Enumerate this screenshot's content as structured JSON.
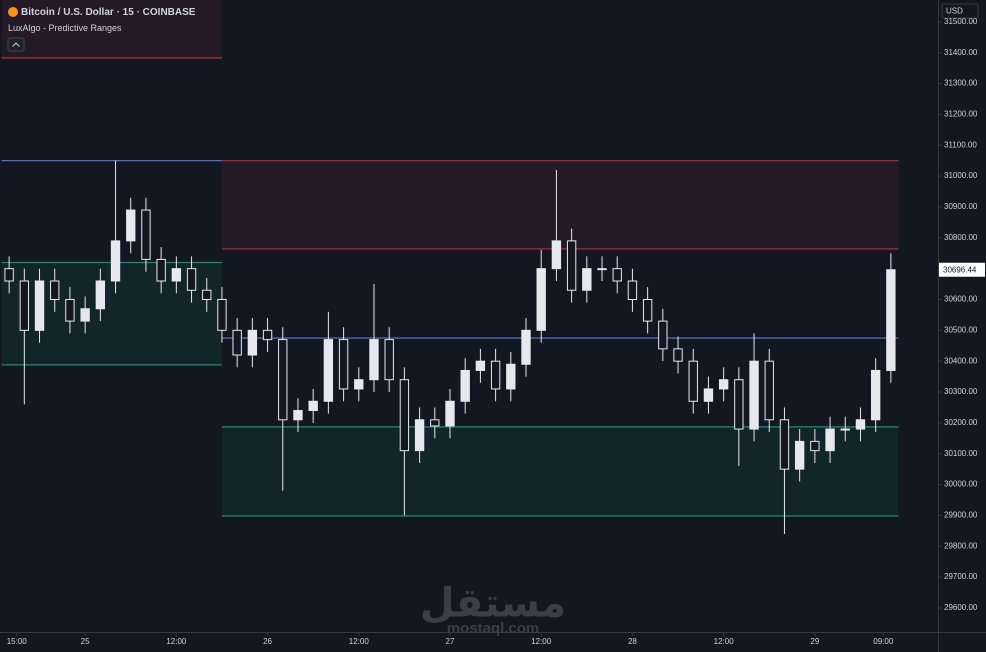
{
  "chart_data": {
    "type": "candlestick",
    "title": "Bitcoin / U.S. Dollar · 15 · COINBASE",
    "indicator": "LuxAlgo - Predictive Ranges",
    "currency": "USD",
    "watermark": "مستقل",
    "watermark_url": "mostaql.com",
    "x": [
      14,
      16,
      18,
      20,
      22,
      24,
      26,
      28,
      30,
      32,
      34,
      36,
      38,
      40,
      42,
      44,
      46,
      48,
      50,
      52,
      54,
      56,
      58,
      60,
      62,
      64,
      66,
      68,
      70,
      72,
      74,
      76,
      78,
      80,
      82,
      84,
      86,
      88,
      90,
      92,
      94,
      96,
      98,
      100,
      102,
      104,
      106,
      108,
      110,
      112,
      114,
      116,
      118,
      120,
      122,
      124,
      126,
      128,
      130
    ],
    "open": [
      30700,
      30660,
      30500,
      30660,
      30600,
      30530,
      30570,
      30660,
      30790,
      30890,
      30730,
      30660,
      30700,
      30630,
      30600,
      30500,
      30420,
      30500,
      30470,
      30210,
      30240,
      30270,
      30470,
      30310,
      30340,
      30470,
      30340,
      30110,
      30210,
      30190,
      30270,
      30370,
      30400,
      30310,
      30390,
      30500,
      30700,
      30790,
      30630,
      30700,
      30700,
      30660,
      30600,
      30530,
      30440,
      30400,
      30270,
      30310,
      30340,
      30180,
      30400,
      30210,
      30050,
      30140,
      30110,
      30180,
      30180,
      30210,
      30370
    ],
    "high": [
      30740,
      30700,
      30700,
      30700,
      30640,
      30610,
      30700,
      31050,
      30930,
      30930,
      30770,
      30740,
      30740,
      30670,
      30640,
      30540,
      30540,
      30540,
      30510,
      30280,
      30310,
      30560,
      30510,
      30380,
      30650,
      30510,
      30380,
      30250,
      30250,
      30310,
      30410,
      30440,
      30440,
      30430,
      30540,
      30760,
      31020,
      30830,
      30740,
      30740,
      30740,
      30700,
      30640,
      30570,
      30480,
      30440,
      30350,
      30380,
      30380,
      30490,
      30440,
      30250,
      30180,
      30180,
      30220,
      30220,
      30250,
      30410,
      30750
    ],
    "low": [
      30620,
      30260,
      30460,
      30560,
      30490,
      30490,
      30530,
      30620,
      30750,
      30690,
      30620,
      30620,
      30590,
      30560,
      30460,
      30380,
      30380,
      30430,
      29980,
      30170,
      30200,
      30230,
      30270,
      30270,
      30300,
      30300,
      29900,
      30070,
      30150,
      30150,
      30230,
      30330,
      30270,
      30270,
      30350,
      30460,
      30660,
      30590,
      30590,
      30660,
      30620,
      30560,
      30490,
      30400,
      30360,
      30230,
      30230,
      30270,
      30060,
      30140,
      30170,
      29840,
      30010,
      30070,
      30070,
      30140,
      30140,
      30170,
      30330
    ],
    "close": [
      30660,
      30500,
      30660,
      30600,
      30530,
      30570,
      30660,
      30790,
      30890,
      30730,
      30660,
      30700,
      30630,
      30600,
      30500,
      30420,
      30500,
      30470,
      30210,
      30240,
      30270,
      30470,
      30310,
      30340,
      30470,
      30340,
      30110,
      30210,
      30190,
      30270,
      30370,
      30400,
      30310,
      30390,
      30500,
      30700,
      30790,
      30630,
      30700,
      30700,
      30660,
      30600,
      30530,
      30440,
      30400,
      30270,
      30310,
      30340,
      30180,
      30400,
      30210,
      30050,
      30140,
      30110,
      30180,
      30180,
      30210,
      30370,
      30696.44
    ],
    "up_color": "#e6e8ee",
    "down_color": "#131722",
    "ranges": [
      {
        "start": 13,
        "end": 42,
        "r1": 31383,
        "avg": 31050,
        "s1": 30720,
        "s2": 30388
      },
      {
        "start": 42,
        "end": 131,
        "r2": 31050,
        "r1": 30764,
        "avg": 30475,
        "s1": 30187,
        "s2": 29898
      }
    ],
    "range_colors": {
      "resistance": "#b3303a",
      "avg": "#5b7fc4",
      "support": "#1f8a7a",
      "resistance_fill": "#241a27",
      "support_fill": "#11252a"
    },
    "xlim": [
      12.8,
      136.2
    ],
    "ylim": [
      29522,
      31571
    ],
    "xticks": [
      {
        "value": 15,
        "label": "15:00"
      },
      {
        "value": 24,
        "label": "25"
      },
      {
        "value": 36,
        "label": "12:00"
      },
      {
        "value": 48,
        "label": "26"
      },
      {
        "value": 60,
        "label": "12:00"
      },
      {
        "value": 72,
        "label": "27"
      },
      {
        "value": 84,
        "label": "12:00"
      },
      {
        "value": 96,
        "label": "28"
      },
      {
        "value": 108,
        "label": "12:00"
      },
      {
        "value": 120,
        "label": "29"
      },
      {
        "value": 129,
        "label": "09:00"
      }
    ],
    "yticks": [
      {
        "value": 29600,
        "label": "29600.00"
      },
      {
        "value": 29700,
        "label": "29700.00"
      },
      {
        "value": 29800,
        "label": "29800.00"
      },
      {
        "value": 29900,
        "label": "29900.00"
      },
      {
        "value": 30000,
        "label": "30000.00"
      },
      {
        "value": 30100,
        "label": "30100.00"
      },
      {
        "value": 30200,
        "label": "30200.00"
      },
      {
        "value": 30300,
        "label": "30300.00"
      },
      {
        "value": 30400,
        "label": "30400.00"
      },
      {
        "value": 30500,
        "label": "30500.00"
      },
      {
        "value": 30600,
        "label": "30600.00"
      },
      {
        "value": 30700,
        "label": "30700.00"
      },
      {
        "value": 30800,
        "label": "30800.00"
      },
      {
        "value": 30900,
        "label": "30900.00"
      },
      {
        "value": 31000,
        "label": "31000.00"
      },
      {
        "value": 31100,
        "label": "31100.00"
      },
      {
        "value": 31200,
        "label": "31200.00"
      },
      {
        "value": 31300,
        "label": "31300.00"
      },
      {
        "value": 31400,
        "label": "31400.00"
      },
      {
        "value": 31500,
        "label": "31500.00"
      }
    ]
  }
}
